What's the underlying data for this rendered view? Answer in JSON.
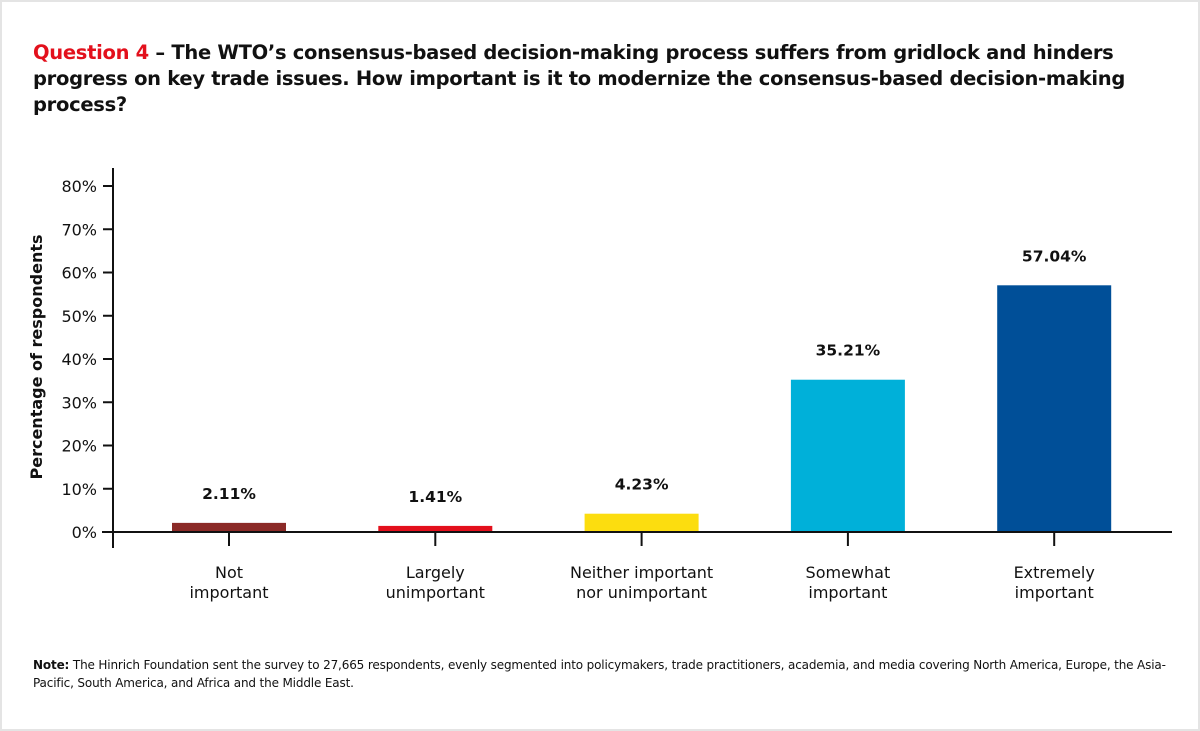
{
  "header": {
    "question_label": "Question 4",
    "question_text": " – The WTO’s consensus-based decision-making process suffers from gridlock and hinders progress on key trade issues. How important is it to modernize the consensus-based decision-making process?"
  },
  "colors": {
    "accent": "#e3101c",
    "text": "#111111",
    "axis": "#111111"
  },
  "chart_data": {
    "type": "bar",
    "title": "Question 4 – The WTO’s consensus-based decision-making process suffers from gridlock and hinders progress on key trade issues. How important is it to modernize the consensus-based decision-making process?",
    "xlabel": "",
    "ylabel": "Percentage of respondents",
    "ylim": [
      0,
      80
    ],
    "yticks": [
      0,
      10,
      20,
      30,
      40,
      50,
      60,
      70,
      80
    ],
    "ytick_labels": [
      "0%",
      "10%",
      "20%",
      "30%",
      "40%",
      "50%",
      "60%",
      "70%",
      "80%"
    ],
    "grid": false,
    "legend": "none",
    "categories": [
      [
        "Not",
        "important"
      ],
      [
        "Largely",
        "unimportant"
      ],
      [
        "Neither important",
        "nor unimportant"
      ],
      [
        "Somewhat",
        "important"
      ],
      [
        "Extremely",
        "important"
      ]
    ],
    "values": [
      2.11,
      1.41,
      4.23,
      35.21,
      57.04
    ],
    "data_labels": [
      "2.11%",
      "1.41%",
      "4.23%",
      "35.21%",
      "57.04%"
    ],
    "bar_colors": [
      "#8b2a27",
      "#e3101c",
      "#fcdd0f",
      "#00b0d9",
      "#004f98"
    ]
  },
  "note": {
    "label": "Note:",
    "text": " The Hinrich Foundation sent the survey to 27,665 respondents, evenly segmented into policymakers, trade practitioners, academia, and media covering North America, Europe, the Asia-Pacific, South America, and Africa and the Middle East."
  }
}
